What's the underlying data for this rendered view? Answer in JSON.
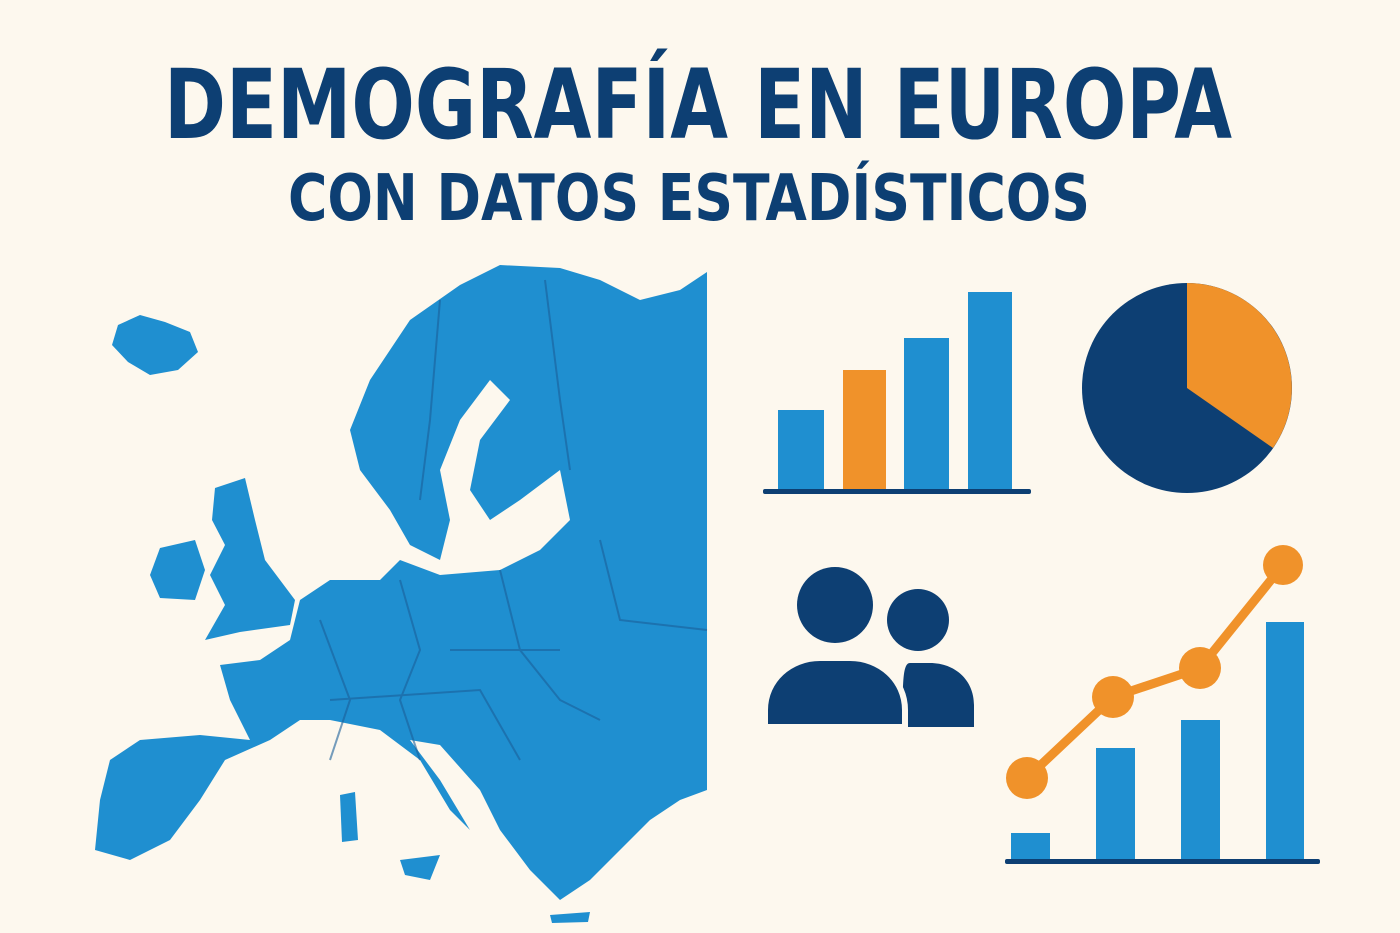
{
  "header": {
    "title": "DEMOGRAFÍA EN EUROPA",
    "subtitle": "CON DATOS ESTADÍSTICOS"
  }
}
